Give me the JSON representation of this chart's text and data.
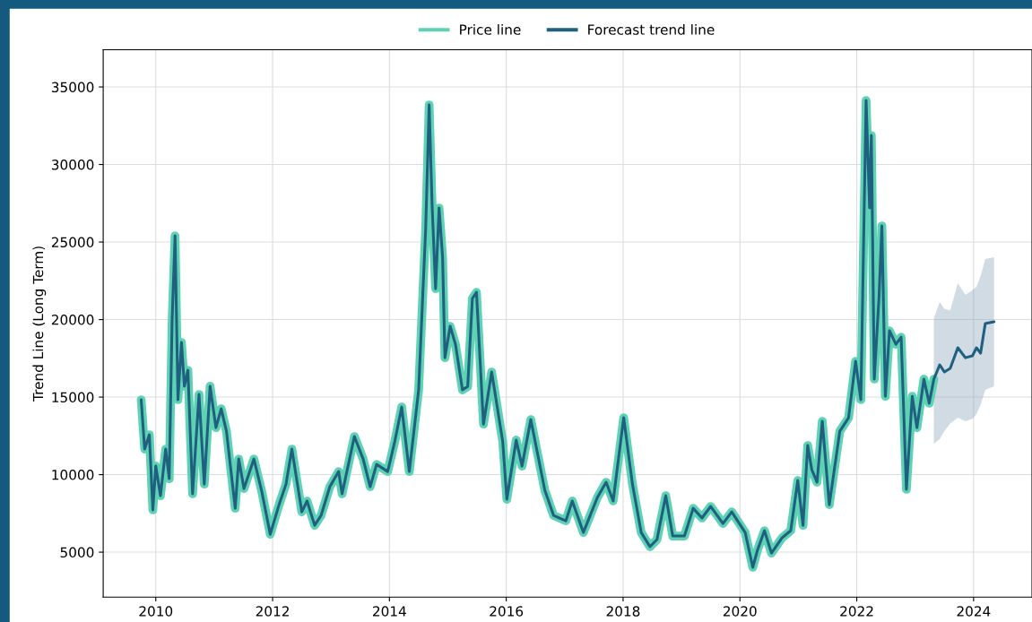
{
  "chart_data": {
    "type": "line",
    "ylabel": "Trend Line (Long Term)",
    "legend": "top",
    "grid": true,
    "xlim": [
      2009.1,
      2025.0
    ],
    "xticks": [
      2010,
      2012,
      2014,
      2016,
      2018,
      2020,
      2022,
      2024
    ],
    "ylim": [
      2100,
      37400
    ],
    "yticks": [
      5000,
      10000,
      15000,
      20000,
      25000,
      30000,
      35000
    ],
    "series": [
      {
        "name": "Price line",
        "color": "#5dd3b4",
        "x": [
          2009.75,
          2009.81,
          2009.89,
          2009.95,
          2010.0,
          2010.08,
          2010.17,
          2010.23,
          2010.28,
          2010.33,
          2010.38,
          2010.44,
          2010.49,
          2010.55,
          2010.63,
          2010.74,
          2010.83,
          2010.93,
          2011.03,
          2011.12,
          2011.21,
          2011.36,
          2011.42,
          2011.51,
          2011.68,
          2011.81,
          2011.96,
          2012.11,
          2012.23,
          2012.33,
          2012.5,
          2012.59,
          2012.72,
          2012.83,
          2012.98,
          2013.13,
          2013.19,
          2013.4,
          2013.55,
          2013.67,
          2013.78,
          2013.97,
          2014.09,
          2014.21,
          2014.34,
          2014.5,
          2014.62,
          2014.68,
          2014.73,
          2014.79,
          2014.85,
          2014.91,
          2014.95,
          2015.04,
          2015.13,
          2015.25,
          2015.34,
          2015.42,
          2015.49,
          2015.61,
          2015.75,
          2015.94,
          2016.01,
          2016.17,
          2016.27,
          2016.42,
          2016.66,
          2016.81,
          2017.02,
          2017.13,
          2017.32,
          2017.56,
          2017.71,
          2017.83,
          2018.01,
          2018.16,
          2018.31,
          2018.46,
          2018.58,
          2018.73,
          2018.85,
          2019.05,
          2019.2,
          2019.35,
          2019.5,
          2019.71,
          2019.86,
          2020.09,
          2020.22,
          2020.3,
          2020.42,
          2020.54,
          2020.72,
          2020.87,
          2020.99,
          2021.08,
          2021.16,
          2021.23,
          2021.32,
          2021.41,
          2021.53,
          2021.71,
          2021.86,
          2021.98,
          2022.07,
          2022.16,
          2022.22,
          2022.25,
          2022.3,
          2022.38,
          2022.43,
          2022.49,
          2022.56,
          2022.67,
          2022.76,
          2022.85,
          2022.95,
          2023.03,
          2023.15,
          2023.24,
          2023.32
        ],
        "values": [
          14830,
          11650,
          12570,
          7720,
          10550,
          8640,
          11650,
          9740,
          19970,
          25400,
          14830,
          18530,
          15700,
          16730,
          8760,
          15170,
          9390,
          15700,
          13030,
          14250,
          12800,
          7830,
          11010,
          9100,
          11010,
          8990,
          6150,
          8060,
          9390,
          11650,
          7600,
          8300,
          6730,
          7370,
          9220,
          10200,
          8760,
          12460,
          11010,
          9220,
          10660,
          10200,
          12110,
          14360,
          10200,
          15460,
          25810,
          33840,
          27430,
          21990,
          27200,
          24020,
          17540,
          19570,
          18410,
          15460,
          15690,
          21360,
          21760,
          13260,
          16620,
          12110,
          8410,
          12230,
          10550,
          13550,
          8990,
          7370,
          7020,
          8300,
          6270,
          8530,
          9510,
          8300,
          13670,
          9390,
          6270,
          5350,
          5810,
          8640,
          6040,
          6040,
          7830,
          7200,
          7950,
          6850,
          7600,
          6270,
          4020,
          5120,
          6390,
          4940,
          5920,
          6390,
          9620,
          6730,
          11880,
          10320,
          9510,
          13440,
          8060,
          12800,
          13670,
          17310,
          14830,
          34130,
          27200,
          31880,
          16160,
          21360,
          26040,
          15050,
          19280,
          18410,
          18870,
          9050,
          15050,
          13030,
          16160,
          14600,
          16160
        ]
      },
      {
        "name": "Forecast trend line",
        "color": "#1f5f80",
        "x": [
          2009.75,
          2009.81,
          2009.89,
          2009.95,
          2010.0,
          2010.08,
          2010.17,
          2010.23,
          2010.28,
          2010.33,
          2010.38,
          2010.44,
          2010.49,
          2010.55,
          2010.63,
          2010.74,
          2010.83,
          2010.93,
          2011.03,
          2011.12,
          2011.21,
          2011.36,
          2011.42,
          2011.51,
          2011.68,
          2011.81,
          2011.96,
          2012.11,
          2012.23,
          2012.33,
          2012.5,
          2012.59,
          2012.72,
          2012.83,
          2012.98,
          2013.13,
          2013.19,
          2013.4,
          2013.55,
          2013.67,
          2013.78,
          2013.97,
          2014.09,
          2014.21,
          2014.34,
          2014.5,
          2014.62,
          2014.68,
          2014.73,
          2014.79,
          2014.85,
          2014.91,
          2014.95,
          2015.04,
          2015.13,
          2015.25,
          2015.34,
          2015.42,
          2015.49,
          2015.61,
          2015.75,
          2015.94,
          2016.01,
          2016.17,
          2016.27,
          2016.42,
          2016.66,
          2016.81,
          2017.02,
          2017.13,
          2017.32,
          2017.56,
          2017.71,
          2017.83,
          2018.01,
          2018.16,
          2018.31,
          2018.46,
          2018.58,
          2018.73,
          2018.85,
          2019.05,
          2019.2,
          2019.35,
          2019.5,
          2019.71,
          2019.86,
          2020.09,
          2020.22,
          2020.3,
          2020.42,
          2020.54,
          2020.72,
          2020.87,
          2020.99,
          2021.08,
          2021.16,
          2021.23,
          2021.32,
          2021.41,
          2021.53,
          2021.71,
          2021.86,
          2021.98,
          2022.07,
          2022.16,
          2022.22,
          2022.25,
          2022.3,
          2022.38,
          2022.43,
          2022.49,
          2022.56,
          2022.67,
          2022.76,
          2022.85,
          2022.95,
          2023.03,
          2023.15,
          2023.24,
          2023.32,
          2023.42,
          2023.5,
          2023.6,
          2023.73,
          2023.86,
          2023.98,
          2024.05,
          2024.12,
          2024.2,
          2024.35
        ],
        "values": [
          14830,
          11650,
          12570,
          7720,
          10550,
          8640,
          11650,
          9740,
          19970,
          25400,
          14830,
          18530,
          15700,
          16730,
          8760,
          15170,
          9390,
          15700,
          13030,
          14250,
          12800,
          7830,
          11010,
          9100,
          11010,
          8990,
          6150,
          8060,
          9390,
          11650,
          7600,
          8300,
          6730,
          7370,
          9220,
          10200,
          8760,
          12460,
          11010,
          9220,
          10660,
          10200,
          12110,
          14360,
          10200,
          15460,
          25810,
          33840,
          27430,
          21990,
          27200,
          24020,
          17540,
          19570,
          18410,
          15460,
          15690,
          21360,
          21760,
          13260,
          16620,
          12110,
          8410,
          12230,
          10550,
          13550,
          8990,
          7370,
          7020,
          8300,
          6270,
          8530,
          9510,
          8300,
          13670,
          9390,
          6270,
          5350,
          5810,
          8640,
          6040,
          6040,
          7830,
          7200,
          7950,
          6850,
          7600,
          6270,
          4020,
          5120,
          6390,
          4940,
          5920,
          6390,
          9620,
          6730,
          11880,
          10320,
          9510,
          13440,
          8060,
          12800,
          13670,
          17310,
          14830,
          34130,
          27200,
          31880,
          16160,
          21360,
          26040,
          15050,
          19280,
          18410,
          18870,
          9050,
          15050,
          13030,
          16160,
          14600,
          16160,
          17080,
          16620,
          16850,
          18180,
          17540,
          17660,
          18180,
          17830,
          19740,
          19860
        ],
        "lower": [
          null,
          null,
          null,
          null,
          null,
          null,
          null,
          null,
          null,
          null,
          null,
          null,
          null,
          null,
          null,
          null,
          null,
          null,
          null,
          null,
          null,
          null,
          null,
          null,
          null,
          null,
          null,
          null,
          null,
          null,
          null,
          null,
          null,
          null,
          null,
          null,
          null,
          null,
          null,
          null,
          null,
          null,
          null,
          null,
          null,
          null,
          null,
          null,
          null,
          null,
          null,
          null,
          null,
          null,
          null,
          null,
          null,
          null,
          null,
          null,
          null,
          null,
          null,
          null,
          null,
          null,
          null,
          null,
          null,
          null,
          null,
          null,
          null,
          null,
          null,
          null,
          null,
          null,
          null,
          null,
          null,
          null,
          null,
          null,
          null,
          null,
          null,
          null,
          null,
          null,
          null,
          null,
          null,
          null,
          null,
          null,
          null,
          null,
          null,
          null,
          null,
          null,
          null,
          null,
          null,
          null,
          null,
          null,
          null,
          null,
          null,
          null,
          null,
          null,
          null,
          null,
          null,
          null,
          null,
          null,
          11990,
          12300,
          12800,
          13300,
          13670,
          13440,
          13600,
          13900,
          14500,
          15460,
          15690
        ],
        "upper": [
          null,
          null,
          null,
          null,
          null,
          null,
          null,
          null,
          null,
          null,
          null,
          null,
          null,
          null,
          null,
          null,
          null,
          null,
          null,
          null,
          null,
          null,
          null,
          null,
          null,
          null,
          null,
          null,
          null,
          null,
          null,
          null,
          null,
          null,
          null,
          null,
          null,
          null,
          null,
          null,
          null,
          null,
          null,
          null,
          null,
          null,
          null,
          null,
          null,
          null,
          null,
          null,
          null,
          null,
          null,
          null,
          null,
          null,
          null,
          null,
          null,
          null,
          null,
          null,
          null,
          null,
          null,
          null,
          null,
          null,
          null,
          null,
          null,
          null,
          null,
          null,
          null,
          null,
          null,
          null,
          null,
          null,
          null,
          null,
          null,
          null,
          null,
          null,
          null,
          null,
          null,
          null,
          null,
          null,
          null,
          null,
          null,
          null,
          null,
          null,
          null,
          null,
          null,
          null,
          null,
          null,
          null,
          null,
          null,
          null,
          null,
          null,
          null,
          null,
          null,
          null,
          null,
          null,
          null,
          null,
          20090,
          21130,
          20700,
          20600,
          22340,
          21590,
          21900,
          22110,
          22800,
          23900,
          24020
        ]
      }
    ]
  }
}
